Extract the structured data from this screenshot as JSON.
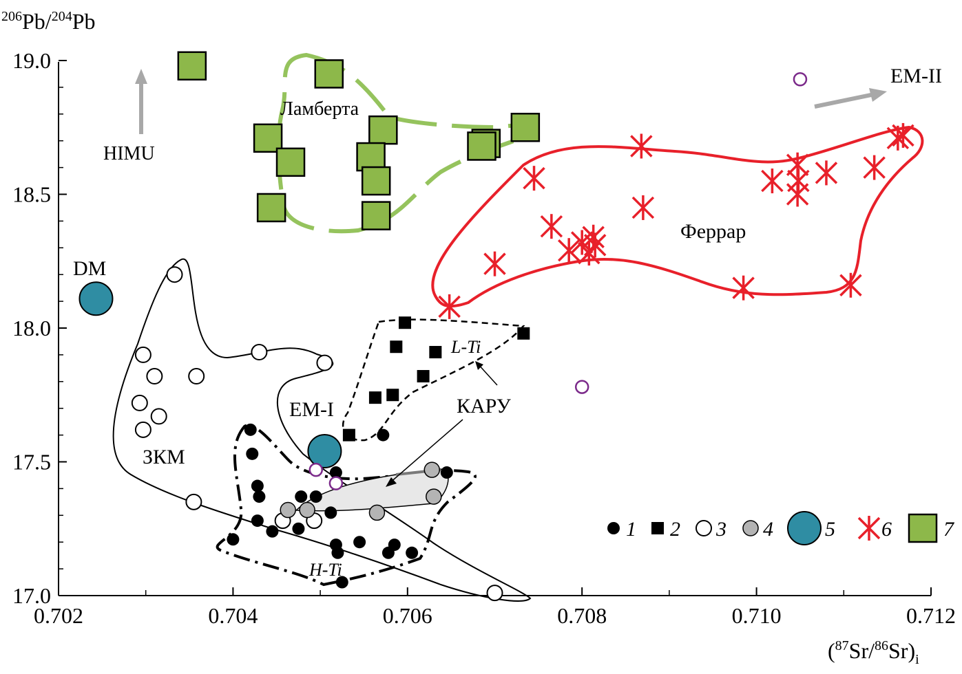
{
  "chart_data": {
    "type": "scatter",
    "title": "",
    "ylabel": {
      "sup1": "206",
      "main1": "Pb/",
      "sup2": "204",
      "main2": "Pb"
    },
    "xlabel": {
      "open": "(",
      "sup1": "87",
      "main1": "Sr/",
      "sup2": "86",
      "main2": "Sr)",
      "sub": "i"
    },
    "xlim": [
      0.702,
      0.712
    ],
    "ylim": [
      17.0,
      19.0
    ],
    "x_ticks": [
      "0.702",
      "0.704",
      "0.706",
      "0.708",
      "0.710",
      "0.712"
    ],
    "x_tick_values": [
      0.702,
      0.704,
      0.706,
      0.708,
      0.71,
      0.712
    ],
    "y_ticks": [
      "17.0",
      "17.5",
      "18.0",
      "18.5",
      "19.0"
    ],
    "y_tick_values": [
      17.0,
      17.5,
      18.0,
      18.5,
      19.0
    ],
    "colors": {
      "ferrar": "#e8202a",
      "lambert": "#8db84a",
      "lambert_line": "#95c35d",
      "mantle": "#2f8da3",
      "purple": "#7b2a8a",
      "gray_arrow": "#a8a8a8",
      "karoo_fill": "#e8e8e8",
      "gray_point": "#b4b4b4"
    },
    "labels": {
      "lambert": "Ламберта",
      "ferrar": "Феррар",
      "zkm": "ЗКМ",
      "karoo": "КАРУ",
      "lti": "L-Ti",
      "hti": "H-Ti",
      "dm": "DM",
      "em1": "EM-I",
      "em2": "EM-II",
      "himu": "HIMU"
    },
    "legend": [
      "1",
      "2",
      "3",
      "4",
      "5",
      "6",
      "7"
    ],
    "series": [
      {
        "name": "1",
        "marker": "filled-circle",
        "points": [
          [
            0.704,
            17.21
          ],
          [
            0.7042,
            17.62
          ],
          [
            0.70422,
            17.53
          ],
          [
            0.70428,
            17.41
          ],
          [
            0.7043,
            17.37
          ],
          [
            0.70428,
            17.28
          ],
          [
            0.70445,
            17.24
          ],
          [
            0.70478,
            17.37
          ],
          [
            0.70475,
            17.25
          ],
          [
            0.70495,
            17.37
          ],
          [
            0.70518,
            17.46
          ],
          [
            0.70518,
            17.19
          ],
          [
            0.7052,
            17.16
          ],
          [
            0.70545,
            17.2
          ],
          [
            0.70572,
            17.6
          ],
          [
            0.70578,
            17.16
          ],
          [
            0.70585,
            17.19
          ],
          [
            0.70605,
            17.16
          ],
          [
            0.70645,
            17.46
          ],
          [
            0.70525,
            17.05
          ],
          [
            0.70512,
            17.31
          ]
        ]
      },
      {
        "name": "2",
        "marker": "filled-square",
        "points": [
          [
            0.70533,
            17.6
          ],
          [
            0.70563,
            17.74
          ],
          [
            0.70583,
            17.75
          ],
          [
            0.70587,
            17.93
          ],
          [
            0.70597,
            18.02
          ],
          [
            0.70618,
            17.82
          ],
          [
            0.70632,
            17.91
          ],
          [
            0.70733,
            17.98
          ]
        ]
      },
      {
        "name": "3",
        "marker": "open-circle",
        "points": [
          [
            0.70333,
            18.2
          ],
          [
            0.70297,
            17.9
          ],
          [
            0.7031,
            17.82
          ],
          [
            0.70358,
            17.82
          ],
          [
            0.70293,
            17.72
          ],
          [
            0.70315,
            17.67
          ],
          [
            0.70297,
            17.62
          ],
          [
            0.7043,
            17.91
          ],
          [
            0.70505,
            17.87
          ],
          [
            0.70355,
            17.35
          ],
          [
            0.70457,
            17.28
          ],
          [
            0.70493,
            17.28
          ],
          [
            0.707,
            17.01
          ]
        ]
      },
      {
        "name": "4",
        "marker": "gray-circle",
        "points": [
          [
            0.70463,
            17.32
          ],
          [
            0.70628,
            17.47
          ],
          [
            0.7063,
            17.37
          ],
          [
            0.70485,
            17.32
          ],
          [
            0.70565,
            17.31
          ]
        ]
      },
      {
        "name": "5",
        "marker": "large-circle",
        "points": [
          [
            0.70243,
            18.11
          ],
          [
            0.70505,
            17.54
          ]
        ]
      },
      {
        "name": "6",
        "marker": "asterisk",
        "points": [
          [
            0.70648,
            18.08
          ],
          [
            0.70745,
            18.56
          ],
          [
            0.707,
            18.24
          ],
          [
            0.70765,
            18.38
          ],
          [
            0.70785,
            18.29
          ],
          [
            0.708,
            18.32
          ],
          [
            0.70808,
            18.28
          ],
          [
            0.70813,
            18.34
          ],
          [
            0.70815,
            18.31
          ],
          [
            0.7087,
            18.45
          ],
          [
            0.70868,
            18.68
          ],
          [
            0.70985,
            18.15
          ],
          [
            0.71018,
            18.55
          ],
          [
            0.71047,
            18.61
          ],
          [
            0.71048,
            18.55
          ],
          [
            0.71047,
            18.5
          ],
          [
            0.7108,
            18.58
          ],
          [
            0.71108,
            18.16
          ],
          [
            0.71135,
            18.6
          ],
          [
            0.71162,
            18.71
          ],
          [
            0.71168,
            18.72
          ]
        ]
      },
      {
        "name": "7",
        "marker": "filled-square-large",
        "points": [
          [
            0.70353,
            18.98
          ],
          [
            0.7051,
            18.95
          ],
          [
            0.70572,
            18.74
          ],
          [
            0.7044,
            18.71
          ],
          [
            0.70466,
            18.62
          ],
          [
            0.70558,
            18.64
          ],
          [
            0.70564,
            18.55
          ],
          [
            0.70444,
            18.45
          ],
          [
            0.70564,
            18.42
          ],
          [
            0.7069,
            18.69
          ],
          [
            0.70735,
            18.75
          ],
          [
            0.70685,
            18.68
          ]
        ]
      },
      {
        "name": "purple",
        "marker": "small-open-circle",
        "points": [
          [
            0.7105,
            18.93
          ],
          [
            0.708,
            17.78
          ],
          [
            0.70495,
            17.47
          ],
          [
            0.70518,
            17.42
          ]
        ]
      }
    ]
  }
}
